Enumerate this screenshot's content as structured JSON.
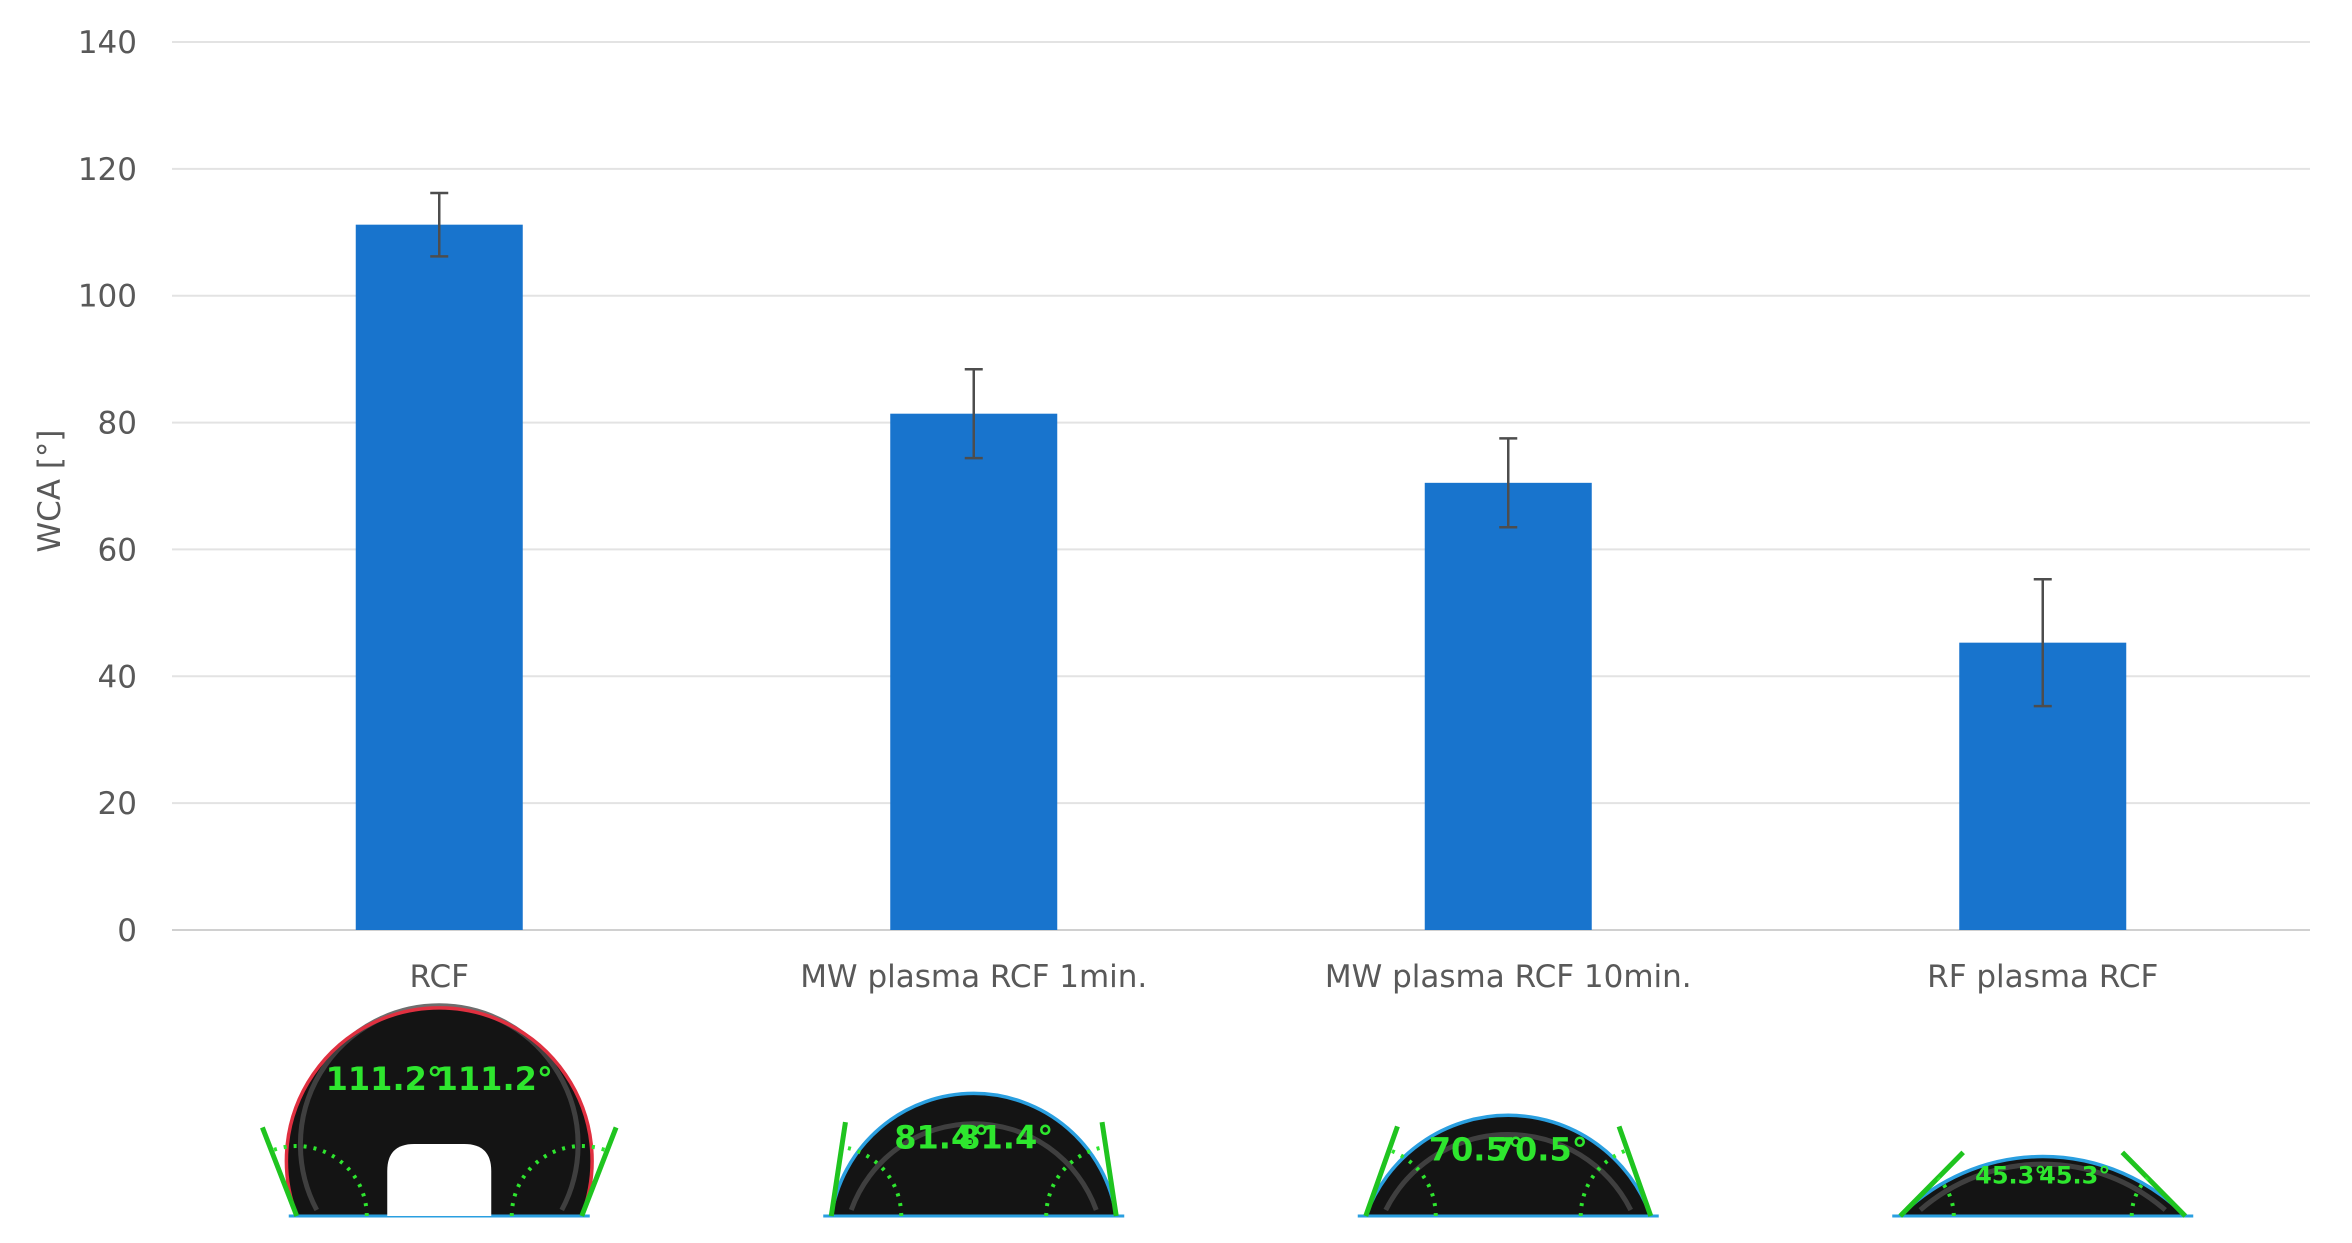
{
  "chart_data": {
    "type": "bar",
    "title": "",
    "xlabel": "",
    "ylabel": "WCA [°]",
    "ylim": [
      0,
      140
    ],
    "yticks": [
      0,
      20,
      40,
      60,
      80,
      100,
      120,
      140
    ],
    "grid": true,
    "legend": "none",
    "bar_color": "#1874CD",
    "categories": [
      "RCF",
      "MW plasma RCF 1min.",
      "MW plasma RCF 10min.",
      "RF plasma RCF"
    ],
    "values": [
      111.2,
      81.4,
      70.5,
      45.3
    ],
    "error": [
      5,
      7,
      7,
      10
    ],
    "drop_images": [
      {
        "angle_left": "111.2°",
        "angle_right": "111.2°"
      },
      {
        "angle_left": "81.4°",
        "angle_right": "81.4°"
      },
      {
        "angle_left": "70.5°",
        "angle_right": "70.5°"
      },
      {
        "angle_left": "45.3°",
        "angle_right": "45.3°"
      }
    ]
  }
}
